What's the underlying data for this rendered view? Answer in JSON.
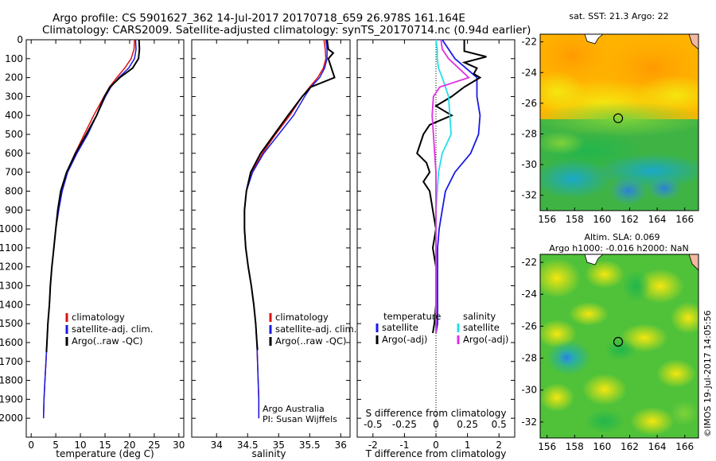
{
  "header": {
    "line1": "Argo profile: CS 5901627_362 14-Jul-2017 20170718_659 26.978S 161.164E",
    "line2": "Climatology: CARS2009. Satellite-adjusted climatology: synTS_20170714.nc (0.94d earlier)"
  },
  "colors": {
    "climatology": "#dd1111",
    "satellite": "#1a1ae6",
    "argo": "#000000",
    "sat_salinity": "#22e0e6",
    "argo_salinity_adj": "#e030e0"
  },
  "chart_data": [
    {
      "type": "line",
      "panel": "temperature",
      "xlabel": "temperature (deg C)",
      "xlim": [
        -1,
        31
      ],
      "ylim": [
        0,
        2100
      ],
      "x_ticks": [
        "0",
        "5",
        "10",
        "15",
        "20",
        "25",
        "30"
      ],
      "y_ticks": [
        "0",
        "100",
        "200",
        "300",
        "400",
        "500",
        "600",
        "700",
        "800",
        "900",
        "1000",
        "1100",
        "1200",
        "1300",
        "1400",
        "1500",
        "1600",
        "1700",
        "1800",
        "1900",
        "2000"
      ],
      "grid": false,
      "legend_position": "lower-center",
      "series": [
        {
          "name": "climatology",
          "color": "#dd1111",
          "depth": [
            0,
            50,
            100,
            150,
            200,
            250,
            300,
            400,
            500,
            600,
            700,
            800,
            900,
            1000,
            1100,
            1200,
            1300,
            1400,
            1500,
            1600,
            1700,
            1800,
            1900,
            2000
          ],
          "values": [
            21.0,
            20.9,
            20.3,
            19.0,
            17.4,
            15.9,
            14.8,
            12.7,
            10.8,
            8.9,
            7.2,
            6.2,
            5.6,
            5.0,
            4.6,
            4.2,
            3.9,
            3.7,
            3.4,
            3.2,
            3.0,
            2.8,
            2.6,
            2.5
          ]
        },
        {
          "name": "satellite-adj. clim.",
          "color": "#1a1ae6",
          "depth": [
            0,
            50,
            100,
            150,
            200,
            250,
            300,
            400,
            500,
            600,
            700,
            800,
            900,
            1000,
            1100,
            1200,
            1300,
            1400,
            1500,
            1600,
            1700,
            1800,
            1900,
            2000
          ],
          "values": [
            21.2,
            21.3,
            21.0,
            19.8,
            17.8,
            16.2,
            15.1,
            13.3,
            11.5,
            9.3,
            7.4,
            6.3,
            5.6,
            5.0,
            4.6,
            4.2,
            3.9,
            3.7,
            3.4,
            3.2,
            3.0,
            2.8,
            2.6,
            2.5
          ]
        },
        {
          "name": "Argo(..raw -QC)",
          "color": "#000000",
          "depth": [
            0,
            50,
            100,
            150,
            200,
            250,
            300,
            400,
            500,
            600,
            700,
            800,
            900,
            1000,
            1100,
            1200,
            1300,
            1400,
            1500,
            1600,
            1650
          ],
          "values": [
            21.9,
            22.0,
            21.8,
            20.6,
            18.0,
            16.0,
            14.9,
            13.3,
            11.2,
            9.0,
            7.2,
            6.0,
            5.4,
            5.0,
            4.6,
            4.2,
            3.9,
            3.7,
            3.4,
            3.2,
            3.1
          ]
        }
      ],
      "legend": [
        "climatology",
        "satellite-adj. clim.",
        "Argo(..raw -QC)"
      ]
    },
    {
      "type": "line",
      "panel": "salinity",
      "xlabel": "salinity",
      "xlim": [
        33.6,
        36.15
      ],
      "ylim": [
        0,
        2100
      ],
      "x_ticks": [
        "34",
        "34.5",
        "35",
        "35.5",
        "36"
      ],
      "grid": false,
      "legend_position": "lower-center",
      "annotations": [
        "Argo Australia",
        "PI: Susan Wijffels"
      ],
      "series": [
        {
          "name": "climatology",
          "color": "#dd1111",
          "depth": [
            0,
            50,
            100,
            150,
            200,
            250,
            300,
            400,
            500,
            600,
            700,
            800,
            900,
            1000,
            1100,
            1200,
            1300,
            1400,
            1500,
            1600,
            1700,
            1800,
            1900,
            2000
          ],
          "values": [
            35.73,
            35.75,
            35.76,
            35.72,
            35.63,
            35.5,
            35.38,
            35.18,
            34.95,
            34.74,
            34.57,
            34.48,
            34.45,
            34.45,
            34.47,
            34.51,
            34.56,
            34.6,
            34.63,
            34.65,
            34.66,
            34.67,
            34.68,
            34.68
          ]
        },
        {
          "name": "satellite-adj. clim.",
          "color": "#1a1ae6",
          "depth": [
            0,
            50,
            100,
            150,
            200,
            250,
            300,
            400,
            500,
            600,
            700,
            800,
            900,
            1000,
            1100,
            1200,
            1300,
            1400,
            1500,
            1600,
            1700,
            1800,
            1900,
            2000
          ],
          "values": [
            35.76,
            35.78,
            35.78,
            35.74,
            35.66,
            35.52,
            35.42,
            35.24,
            35.0,
            34.76,
            34.58,
            34.48,
            34.45,
            34.45,
            34.47,
            34.51,
            34.56,
            34.6,
            34.63,
            34.65,
            34.66,
            34.67,
            34.68,
            34.68
          ]
        },
        {
          "name": "Argo(..raw -QC)",
          "color": "#000000",
          "depth": [
            0,
            50,
            70,
            100,
            150,
            200,
            250,
            300,
            400,
            500,
            600,
            700,
            800,
            900,
            1000,
            1100,
            1200,
            1300,
            1400,
            1500,
            1600,
            1640
          ],
          "values": [
            35.78,
            35.8,
            35.88,
            35.8,
            35.85,
            35.9,
            35.52,
            35.38,
            35.15,
            34.93,
            34.71,
            34.55,
            34.48,
            34.45,
            34.45,
            34.47,
            34.51,
            34.56,
            34.6,
            34.63,
            34.65,
            34.66
          ]
        }
      ],
      "legend": [
        "climatology",
        "satellite-adj. clim.",
        "Argo(..raw -QC)"
      ]
    },
    {
      "type": "line",
      "panel": "difference",
      "xlabel": "T difference from climatology",
      "xlabel_top": "S difference from climatology",
      "xlim": [
        -2.5,
        2.5
      ],
      "x_ticks": [
        "-2",
        "-1",
        "0",
        "1",
        "2"
      ],
      "x_ticks_s": [
        "-0.5",
        "-0.25",
        "0",
        "0.25",
        "0.5"
      ],
      "ylim": [
        0,
        2100
      ],
      "grid": false,
      "legend_position": "lower-center",
      "legend_titles": {
        "temperature": "temperature",
        "salinity": "salinity"
      },
      "legend": [
        "satellite",
        "Argo(-adj)",
        "satellite",
        "Argo(-adj)"
      ],
      "series": [
        {
          "name": "temperature satellite",
          "color": "#1a1ae6",
          "depth": [
            0,
            100,
            200,
            300,
            400,
            500,
            600,
            700,
            800,
            900,
            1000,
            1100,
            1200,
            1300,
            1400,
            1500,
            1550
          ],
          "values": [
            0.2,
            0.6,
            1.3,
            1.3,
            1.4,
            1.35,
            1.1,
            0.6,
            0.3,
            0.2,
            0.1,
            0.05,
            0.05,
            0.05,
            0.05,
            0.05,
            0.0
          ]
        },
        {
          "name": "temperature Argo(-adj)",
          "color": "#000000",
          "depth": [
            0,
            60,
            90,
            120,
            150,
            180,
            200,
            250,
            300,
            350,
            400,
            450,
            500,
            550,
            600,
            650,
            700,
            750,
            800,
            900,
            1000,
            1100,
            1200,
            1300,
            1400,
            1500,
            1550
          ],
          "values": [
            0.9,
            0.9,
            1.6,
            0.9,
            1.3,
            1.2,
            1.4,
            0.9,
            0.5,
            0.0,
            0.5,
            -0.2,
            -0.4,
            -0.5,
            -0.6,
            -0.3,
            -0.2,
            -0.4,
            -0.2,
            -0.1,
            0.0,
            -0.1,
            0.0,
            0.0,
            0.0,
            -0.05,
            -0.1
          ]
        },
        {
          "name": "salinity satellite",
          "color": "#22e0e6",
          "depth": [
            0,
            50,
            100,
            150,
            200,
            300,
            400,
            500,
            600,
            700,
            800,
            900,
            1000,
            1100,
            1200,
            1300,
            1400,
            1500,
            1550
          ],
          "values": [
            0.0,
            0.01,
            0.01,
            0.02,
            0.05,
            0.1,
            0.11,
            0.12,
            0.05,
            0.02,
            0.01,
            0.0,
            0.0,
            0.0,
            0.0,
            0.0,
            0.0,
            0.0,
            0.0
          ]
        },
        {
          "name": "salinity Argo(-adj)",
          "color": "#e030e0",
          "depth": [
            0,
            50,
            100,
            150,
            200,
            250,
            300,
            400,
            500,
            600,
            700,
            800,
            900,
            1000,
            1100,
            1200,
            1300,
            1400,
            1500,
            1550
          ],
          "values": [
            0.04,
            0.05,
            0.1,
            0.18,
            0.26,
            0.03,
            -0.02,
            -0.03,
            -0.02,
            -0.01,
            0.0,
            0.0,
            0.0,
            0.0,
            0.0,
            0.0,
            0.0,
            0.0,
            0.0,
            0.0
          ]
        }
      ]
    },
    {
      "type": "heatmap",
      "panel": "sst_map",
      "title": "sat. SST: 21.3 Argo: 22",
      "x_ticks": [
        "156",
        "158",
        "160",
        "162",
        "164",
        "166"
      ],
      "y_ticks": [
        "-22",
        "-24",
        "-26",
        "-28",
        "-30",
        "-32"
      ],
      "xlim": [
        155.5,
        167
      ],
      "ylim": [
        -33,
        -21.5
      ],
      "marker": {
        "lon": 161.164,
        "lat": -26.978
      }
    },
    {
      "type": "heatmap",
      "panel": "sla_map",
      "title": "Altim. SLA: 0.069",
      "subtitle": "Argo h1000: -0.016 h2000: NaN",
      "x_ticks": [
        "156",
        "158",
        "160",
        "162",
        "164",
        "166"
      ],
      "y_ticks": [
        "-22",
        "-24",
        "-26",
        "-28",
        "-30",
        "-32"
      ],
      "xlim": [
        155.5,
        167
      ],
      "ylim": [
        -33,
        -21.5
      ],
      "marker": {
        "lon": 161.164,
        "lat": -26.978
      }
    }
  ],
  "footer": {
    "vertical_note": "©IMOS 19-Jul-2017 14:05:56"
  }
}
